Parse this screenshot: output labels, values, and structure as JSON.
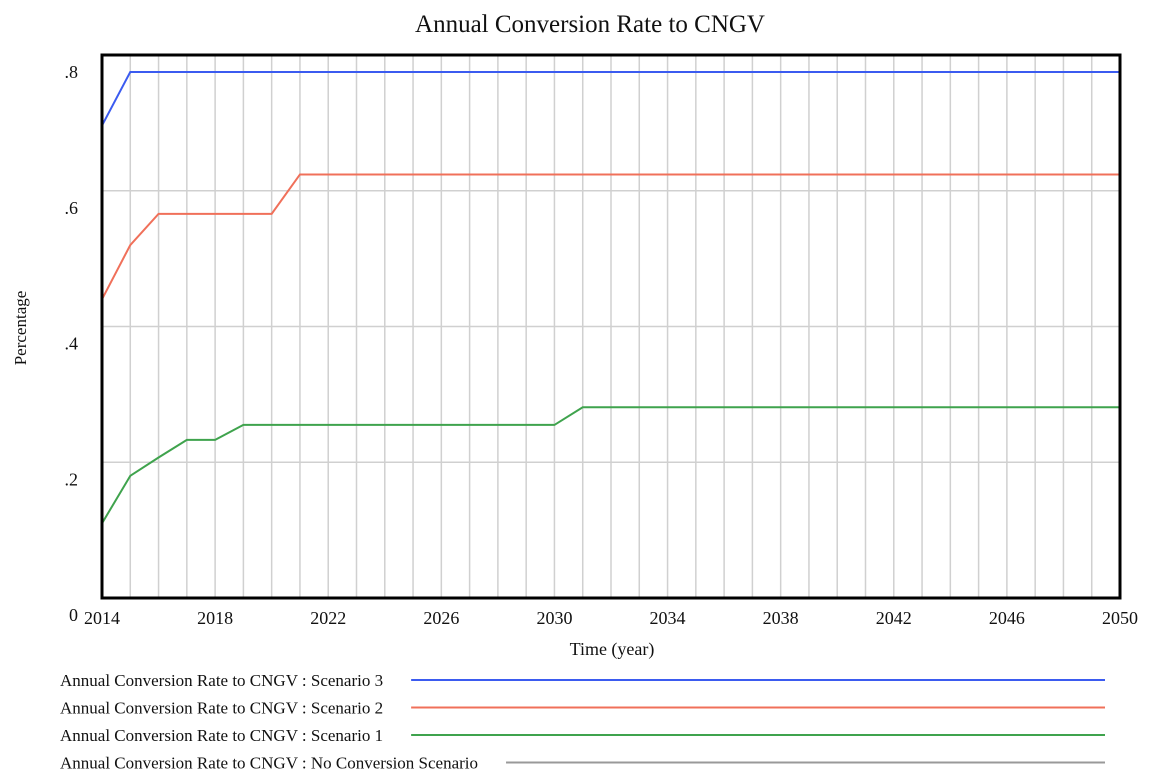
{
  "chart_data": {
    "type": "line",
    "title": "Annual Conversion Rate to CNGV",
    "x_label": "Time (year)",
    "y_label": "Percentage",
    "x": [
      2014,
      2015,
      2016,
      2017,
      2018,
      2019,
      2020,
      2021,
      2030,
      2031,
      2050
    ],
    "series": [
      {
        "name": "Annual Conversion Rate to CNGV : Scenario 3",
        "color": "#3b5bf0",
        "values": [
          0.696,
          0.775,
          0.775,
          0.775,
          0.775,
          0.775,
          0.775,
          0.775,
          0.775,
          0.775,
          0.775
        ]
      },
      {
        "name": "Annual Conversion Rate to CNGV : Scenario 2",
        "color": "#f0705a",
        "values": [
          0.44,
          0.52,
          0.566,
          0.566,
          0.566,
          0.566,
          0.566,
          0.624,
          0.624,
          0.624,
          0.624
        ]
      },
      {
        "name": "Annual Conversion Rate to CNGV : Scenario 1",
        "color": "#3fa34d",
        "values": [
          0.11,
          0.18,
          0.207,
          0.233,
          0.233,
          0.255,
          0.255,
          0.255,
          0.255,
          0.281,
          0.281
        ]
      },
      {
        "name": "Annual Conversion Rate to CNGV : No Conversion Scenario",
        "color": "#999999",
        "values": [
          0,
          0,
          0,
          0,
          0,
          0,
          0,
          0,
          0,
          0,
          0
        ]
      }
    ],
    "xlim": [
      2014,
      2050
    ],
    "xticks": [
      2014,
      2018,
      2022,
      2026,
      2030,
      2034,
      2038,
      2042,
      2046,
      2050
    ],
    "xgrid": [
      2015,
      2016,
      2017,
      2018,
      2019,
      2020,
      2021,
      2022,
      2023,
      2024,
      2025,
      2026,
      2027,
      2028,
      2029,
      2030,
      2031,
      2032,
      2033,
      2034,
      2035,
      2036,
      2037,
      2038,
      2039,
      2040,
      2041,
      2042,
      2043,
      2044,
      2045,
      2046,
      2047,
      2048,
      2049
    ],
    "ylim": [
      0,
      0.8
    ],
    "yticks": [
      {
        "value": 0,
        "label": "0"
      },
      {
        "value": 0.2,
        "label": ".2"
      },
      {
        "value": 0.4,
        "label": ".4"
      },
      {
        "value": 0.6,
        "label": ".6"
      },
      {
        "value": 0.8,
        "label": ".8"
      }
    ],
    "grid": true,
    "legend": "bottom"
  }
}
